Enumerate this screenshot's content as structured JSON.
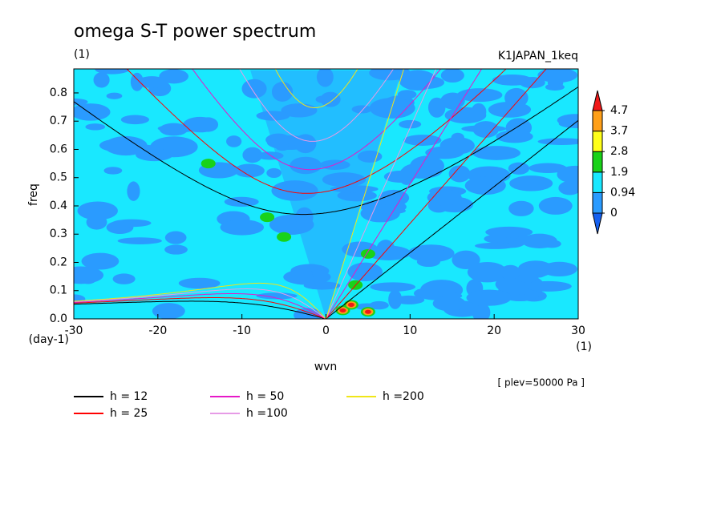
{
  "chart_data": {
    "type": "contour",
    "title": "omega S-T power spectrum",
    "subtitle": "(1)",
    "dataset": "K1JAPAN_1keq",
    "xlabel": "wvn",
    "xunit": "(1)",
    "ylabel": "freq",
    "yunit": "(day-1)",
    "note": "[ plev=50000 Pa ]",
    "xlim": [
      -30,
      30
    ],
    "xticks": [
      -30,
      -20,
      -10,
      0,
      10,
      20,
      30
    ],
    "ylim": [
      0,
      0.885
    ],
    "yticks": [
      {
        "value": 0,
        "label": "0.0"
      },
      0.1,
      0.2,
      0.3,
      0.4,
      0.5,
      0.6,
      0.7,
      0.8
    ],
    "levels": [
      0,
      0.94,
      1.9,
      2.8,
      3.7,
      4.7
    ],
    "level_colors": [
      "#1560f0",
      "#2a9bff",
      "#19e8ff",
      "#19d219",
      "#ffff19",
      "#ffa019",
      "#f01919"
    ],
    "peaks": [
      {
        "x": 2,
        "y": 0.03,
        "value": 4.8
      },
      {
        "x": 3,
        "y": 0.05,
        "value": 4.8
      },
      {
        "x": 5,
        "y": 0.025,
        "value": 4.8
      },
      {
        "x": 3.5,
        "y": 0.12,
        "value": 2
      },
      {
        "x": -14,
        "y": 0.55,
        "value": 2
      },
      {
        "x": -7,
        "y": 0.36,
        "value": 2
      },
      {
        "x": -5,
        "y": 0.29,
        "value": 2
      },
      {
        "x": 5,
        "y": 0.23,
        "value": 2
      }
    ],
    "series": [
      {
        "name": "h = 12",
        "h": 12,
        "color": "#000000"
      },
      {
        "name": "h = 25",
        "h": 25,
        "color": "#ff0000"
      },
      {
        "name": "h = 50",
        "h": 50,
        "color": "#e619c8"
      },
      {
        "name": "h =100",
        "h": 100,
        "color": "#e69be6"
      },
      {
        "name": "h =200",
        "h": 200,
        "color": "#f0e619"
      }
    ]
  }
}
